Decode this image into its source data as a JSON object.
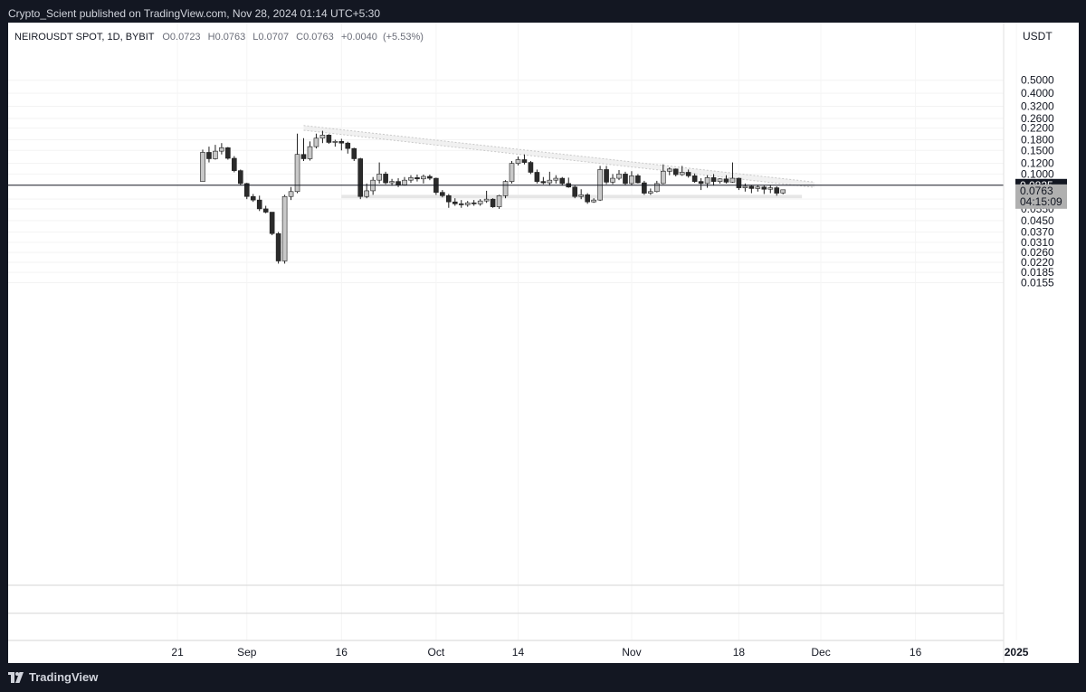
{
  "header": {
    "published": "Crypto_Scient published on TradingView.com, Nov 28, 2024 01:14 UTC+5:30"
  },
  "footer": {
    "brand": "TradingView"
  },
  "colors": {
    "frame": "#131722",
    "panel": "#ffffff",
    "bull": "#c8c8c8",
    "bear": "#2b2b2b",
    "support_zone": "#e6e6e6",
    "trend_channel": "#ebebeb",
    "priceline": "#131722",
    "current_label": "#b0b0b0"
  },
  "chart_data": {
    "type": "candlestick",
    "symbol": "NEIROUSDT SPOT",
    "interval": "1D",
    "exchange": "BYBIT",
    "ohlc": {
      "o": "0.0723",
      "h": "0.0763",
      "l": "0.0707",
      "c": "0.0763",
      "change": "+0.0040",
      "change_pct": "(+5.53%)"
    },
    "currency": "USDT",
    "y_scale": "log",
    "y_ticks": [
      "0.5000",
      "0.4000",
      "0.3200",
      "0.2600",
      "0.2200",
      "0.1800",
      "0.1500",
      "0.1200",
      "0.1000",
      "0.0650",
      "0.0550",
      "0.0450",
      "0.0370",
      "0.0310",
      "0.0260",
      "0.0220",
      "0.0185",
      "0.0155"
    ],
    "x_ticks": [
      "21",
      "Sep",
      "16",
      "Oct",
      "14",
      "Nov",
      "18",
      "Dec",
      "16",
      "2025"
    ],
    "horizontal_line": {
      "value": "0.0825",
      "label": "0.0825"
    },
    "current_price": {
      "value": "0.0763",
      "countdown": "04:15:09"
    },
    "support_zone": {
      "low": 0.066,
      "high": 0.07,
      "from": "2024-09-16",
      "to": "2024-11-28"
    },
    "trendline_channel": {
      "start": {
        "date": "2024-09-10",
        "upper": 0.23,
        "lower": 0.212
      },
      "end": {
        "date": "2024-11-30",
        "upper": 0.087,
        "lower": 0.0795
      }
    },
    "candles": [
      {
        "d": "2024-08-25",
        "o": 0.088,
        "h": 0.152,
        "l": 0.088,
        "c": 0.145
      },
      {
        "d": "2024-08-26",
        "o": 0.145,
        "h": 0.16,
        "l": 0.122,
        "c": 0.13
      },
      {
        "d": "2024-08-27",
        "o": 0.13,
        "h": 0.165,
        "l": 0.128,
        "c": 0.148
      },
      {
        "d": "2024-08-28",
        "o": 0.148,
        "h": 0.17,
        "l": 0.14,
        "c": 0.157
      },
      {
        "d": "2024-08-29",
        "o": 0.157,
        "h": 0.159,
        "l": 0.128,
        "c": 0.131
      },
      {
        "d": "2024-08-30",
        "o": 0.131,
        "h": 0.136,
        "l": 0.103,
        "c": 0.106
      },
      {
        "d": "2024-08-31",
        "o": 0.106,
        "h": 0.108,
        "l": 0.083,
        "c": 0.085
      },
      {
        "d": "2024-09-01",
        "o": 0.085,
        "h": 0.086,
        "l": 0.065,
        "c": 0.068
      },
      {
        "d": "2024-09-02",
        "o": 0.068,
        "h": 0.071,
        "l": 0.062,
        "c": 0.064
      },
      {
        "d": "2024-09-03",
        "o": 0.064,
        "h": 0.069,
        "l": 0.053,
        "c": 0.055
      },
      {
        "d": "2024-09-04",
        "o": 0.055,
        "h": 0.058,
        "l": 0.051,
        "c": 0.052
      },
      {
        "d": "2024-09-05",
        "o": 0.052,
        "h": 0.052,
        "l": 0.035,
        "c": 0.036
      },
      {
        "d": "2024-09-06",
        "o": 0.036,
        "h": 0.037,
        "l": 0.0215,
        "c": 0.0225
      },
      {
        "d": "2024-09-07",
        "o": 0.0225,
        "h": 0.07,
        "l": 0.0215,
        "c": 0.068
      },
      {
        "d": "2024-09-08",
        "o": 0.068,
        "h": 0.08,
        "l": 0.064,
        "c": 0.074
      },
      {
        "d": "2024-09-09",
        "o": 0.074,
        "h": 0.2,
        "l": 0.072,
        "c": 0.14
      },
      {
        "d": "2024-09-10",
        "o": 0.14,
        "h": 0.185,
        "l": 0.125,
        "c": 0.13
      },
      {
        "d": "2024-09-11",
        "o": 0.13,
        "h": 0.175,
        "l": 0.126,
        "c": 0.16
      },
      {
        "d": "2024-09-12",
        "o": 0.16,
        "h": 0.2,
        "l": 0.155,
        "c": 0.185
      },
      {
        "d": "2024-09-13",
        "o": 0.185,
        "h": 0.21,
        "l": 0.17,
        "c": 0.195
      },
      {
        "d": "2024-09-14",
        "o": 0.195,
        "h": 0.198,
        "l": 0.168,
        "c": 0.172
      },
      {
        "d": "2024-09-15",
        "o": 0.172,
        "h": 0.18,
        "l": 0.16,
        "c": 0.175
      },
      {
        "d": "2024-09-16",
        "o": 0.175,
        "h": 0.183,
        "l": 0.15,
        "c": 0.17
      },
      {
        "d": "2024-09-17",
        "o": 0.17,
        "h": 0.174,
        "l": 0.142,
        "c": 0.155
      },
      {
        "d": "2024-09-18",
        "o": 0.155,
        "h": 0.157,
        "l": 0.125,
        "c": 0.13
      },
      {
        "d": "2024-09-19",
        "o": 0.13,
        "h": 0.132,
        "l": 0.065,
        "c": 0.068
      },
      {
        "d": "2024-09-20",
        "o": 0.068,
        "h": 0.085,
        "l": 0.066,
        "c": 0.075
      },
      {
        "d": "2024-09-21",
        "o": 0.075,
        "h": 0.095,
        "l": 0.07,
        "c": 0.09
      },
      {
        "d": "2024-09-22",
        "o": 0.09,
        "h": 0.122,
        "l": 0.085,
        "c": 0.1
      },
      {
        "d": "2024-09-23",
        "o": 0.1,
        "h": 0.104,
        "l": 0.084,
        "c": 0.086
      },
      {
        "d": "2024-09-24",
        "o": 0.086,
        "h": 0.092,
        "l": 0.082,
        "c": 0.088
      },
      {
        "d": "2024-09-25",
        "o": 0.088,
        "h": 0.093,
        "l": 0.08,
        "c": 0.083
      },
      {
        "d": "2024-09-26",
        "o": 0.083,
        "h": 0.095,
        "l": 0.082,
        "c": 0.09
      },
      {
        "d": "2024-09-27",
        "o": 0.09,
        "h": 0.098,
        "l": 0.086,
        "c": 0.094
      },
      {
        "d": "2024-09-28",
        "o": 0.094,
        "h": 0.099,
        "l": 0.088,
        "c": 0.092
      },
      {
        "d": "2024-09-29",
        "o": 0.092,
        "h": 0.099,
        "l": 0.085,
        "c": 0.096
      },
      {
        "d": "2024-09-30",
        "o": 0.096,
        "h": 0.099,
        "l": 0.09,
        "c": 0.093
      },
      {
        "d": "2024-10-01",
        "o": 0.093,
        "h": 0.094,
        "l": 0.07,
        "c": 0.073
      },
      {
        "d": "2024-10-02",
        "o": 0.073,
        "h": 0.076,
        "l": 0.067,
        "c": 0.069
      },
      {
        "d": "2024-10-03",
        "o": 0.069,
        "h": 0.071,
        "l": 0.056,
        "c": 0.062
      },
      {
        "d": "2024-10-04",
        "o": 0.062,
        "h": 0.066,
        "l": 0.058,
        "c": 0.06
      },
      {
        "d": "2024-10-05",
        "o": 0.06,
        "h": 0.064,
        "l": 0.056,
        "c": 0.059
      },
      {
        "d": "2024-10-06",
        "o": 0.059,
        "h": 0.063,
        "l": 0.057,
        "c": 0.061
      },
      {
        "d": "2024-10-07",
        "o": 0.061,
        "h": 0.064,
        "l": 0.058,
        "c": 0.06
      },
      {
        "d": "2024-10-08",
        "o": 0.06,
        "h": 0.065,
        "l": 0.058,
        "c": 0.063
      },
      {
        "d": "2024-10-09",
        "o": 0.063,
        "h": 0.075,
        "l": 0.061,
        "c": 0.065
      },
      {
        "d": "2024-10-10",
        "o": 0.065,
        "h": 0.066,
        "l": 0.056,
        "c": 0.057
      },
      {
        "d": "2024-10-11",
        "o": 0.057,
        "h": 0.07,
        "l": 0.055,
        "c": 0.069
      },
      {
        "d": "2024-10-12",
        "o": 0.069,
        "h": 0.09,
        "l": 0.066,
        "c": 0.088
      },
      {
        "d": "2024-10-13",
        "o": 0.088,
        "h": 0.125,
        "l": 0.085,
        "c": 0.12
      },
      {
        "d": "2024-10-14",
        "o": 0.12,
        "h": 0.135,
        "l": 0.116,
        "c": 0.128
      },
      {
        "d": "2024-10-15",
        "o": 0.128,
        "h": 0.14,
        "l": 0.118,
        "c": 0.122
      },
      {
        "d": "2024-10-16",
        "o": 0.122,
        "h": 0.125,
        "l": 0.1,
        "c": 0.103
      },
      {
        "d": "2024-10-17",
        "o": 0.103,
        "h": 0.108,
        "l": 0.085,
        "c": 0.088
      },
      {
        "d": "2024-10-18",
        "o": 0.088,
        "h": 0.095,
        "l": 0.084,
        "c": 0.086
      },
      {
        "d": "2024-10-19",
        "o": 0.086,
        "h": 0.104,
        "l": 0.082,
        "c": 0.09
      },
      {
        "d": "2024-10-20",
        "o": 0.09,
        "h": 0.098,
        "l": 0.085,
        "c": 0.093
      },
      {
        "d": "2024-10-21",
        "o": 0.093,
        "h": 0.095,
        "l": 0.082,
        "c": 0.085
      },
      {
        "d": "2024-10-22",
        "o": 0.085,
        "h": 0.094,
        "l": 0.079,
        "c": 0.08
      },
      {
        "d": "2024-10-23",
        "o": 0.08,
        "h": 0.082,
        "l": 0.066,
        "c": 0.068
      },
      {
        "d": "2024-10-24",
        "o": 0.068,
        "h": 0.077,
        "l": 0.065,
        "c": 0.07
      },
      {
        "d": "2024-10-25",
        "o": 0.07,
        "h": 0.072,
        "l": 0.06,
        "c": 0.062
      },
      {
        "d": "2024-10-26",
        "o": 0.062,
        "h": 0.066,
        "l": 0.061,
        "c": 0.064
      },
      {
        "d": "2024-10-27",
        "o": 0.064,
        "h": 0.115,
        "l": 0.063,
        "c": 0.108
      },
      {
        "d": "2024-10-28",
        "o": 0.108,
        "h": 0.115,
        "l": 0.084,
        "c": 0.087
      },
      {
        "d": "2024-10-29",
        "o": 0.087,
        "h": 0.1,
        "l": 0.084,
        "c": 0.093
      },
      {
        "d": "2024-10-30",
        "o": 0.093,
        "h": 0.107,
        "l": 0.09,
        "c": 0.1
      },
      {
        "d": "2024-10-31",
        "o": 0.1,
        "h": 0.104,
        "l": 0.083,
        "c": 0.085
      },
      {
        "d": "2024-11-01",
        "o": 0.085,
        "h": 0.105,
        "l": 0.083,
        "c": 0.097
      },
      {
        "d": "2024-11-02",
        "o": 0.097,
        "h": 0.1,
        "l": 0.085,
        "c": 0.086
      },
      {
        "d": "2024-11-03",
        "o": 0.086,
        "h": 0.089,
        "l": 0.07,
        "c": 0.072
      },
      {
        "d": "2024-11-04",
        "o": 0.072,
        "h": 0.078,
        "l": 0.07,
        "c": 0.074
      },
      {
        "d": "2024-11-05",
        "o": 0.074,
        "h": 0.089,
        "l": 0.073,
        "c": 0.085
      },
      {
        "d": "2024-11-06",
        "o": 0.085,
        "h": 0.118,
        "l": 0.084,
        "c": 0.105
      },
      {
        "d": "2024-11-07",
        "o": 0.105,
        "h": 0.112,
        "l": 0.098,
        "c": 0.109
      },
      {
        "d": "2024-11-08",
        "o": 0.109,
        "h": 0.11,
        "l": 0.096,
        "c": 0.099
      },
      {
        "d": "2024-11-09",
        "o": 0.099,
        "h": 0.115,
        "l": 0.097,
        "c": 0.103
      },
      {
        "d": "2024-11-10",
        "o": 0.103,
        "h": 0.108,
        "l": 0.094,
        "c": 0.097
      },
      {
        "d": "2024-11-11",
        "o": 0.097,
        "h": 0.101,
        "l": 0.086,
        "c": 0.088
      },
      {
        "d": "2024-11-12",
        "o": 0.088,
        "h": 0.093,
        "l": 0.076,
        "c": 0.085
      },
      {
        "d": "2024-11-13",
        "o": 0.085,
        "h": 0.098,
        "l": 0.079,
        "c": 0.094
      },
      {
        "d": "2024-11-14",
        "o": 0.094,
        "h": 0.1,
        "l": 0.082,
        "c": 0.088
      },
      {
        "d": "2024-11-15",
        "o": 0.088,
        "h": 0.093,
        "l": 0.085,
        "c": 0.092
      },
      {
        "d": "2024-11-16",
        "o": 0.092,
        "h": 0.098,
        "l": 0.085,
        "c": 0.087
      },
      {
        "d": "2024-11-17",
        "o": 0.087,
        "h": 0.122,
        "l": 0.086,
        "c": 0.093
      },
      {
        "d": "2024-11-18",
        "o": 0.093,
        "h": 0.094,
        "l": 0.076,
        "c": 0.079
      },
      {
        "d": "2024-11-19",
        "o": 0.079,
        "h": 0.085,
        "l": 0.074,
        "c": 0.081
      },
      {
        "d": "2024-11-20",
        "o": 0.081,
        "h": 0.083,
        "l": 0.072,
        "c": 0.078
      },
      {
        "d": "2024-11-21",
        "o": 0.078,
        "h": 0.083,
        "l": 0.074,
        "c": 0.08
      },
      {
        "d": "2024-11-22",
        "o": 0.08,
        "h": 0.082,
        "l": 0.071,
        "c": 0.077
      },
      {
        "d": "2024-11-23",
        "o": 0.077,
        "h": 0.083,
        "l": 0.072,
        "c": 0.079
      },
      {
        "d": "2024-11-24",
        "o": 0.079,
        "h": 0.081,
        "l": 0.069,
        "c": 0.072
      },
      {
        "d": "2024-11-25",
        "o": 0.0723,
        "h": 0.0763,
        "l": 0.0707,
        "c": 0.0763
      }
    ]
  }
}
